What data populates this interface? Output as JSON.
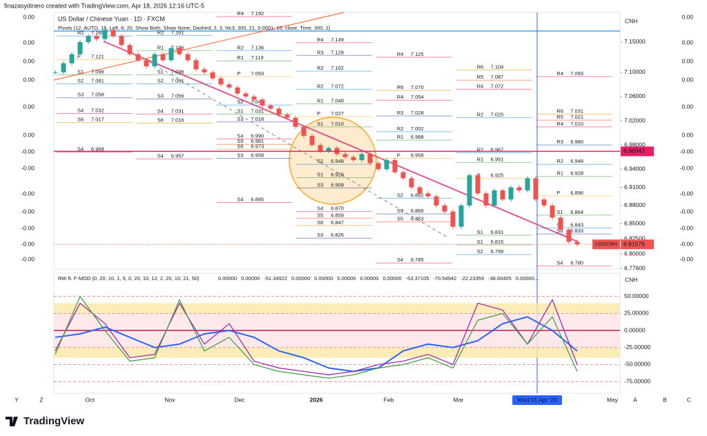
{
  "header": {
    "watermark": "finazasydinero created with TradingView.com, Apr 18, 2026 12:16 UTC-5",
    "symbol": "US Dollar / Chinese Yuan · 1D · FXCM",
    "pivots_legend": "Pivots (12, AUTO, 15, Left, 8, 20, Show Both, Show None, Dashed, 2, 3, hlc3, 300, 21, 0.0001, 10, close, Time, 300, 2)"
  },
  "chart_data": [
    {
      "type": "candlestick",
      "currency": "CNH",
      "up_color": "#26a69a",
      "down_color": "#ef5350",
      "closes": [
        7.1,
        7.115,
        7.13,
        7.15,
        7.16,
        7.155,
        7.17,
        7.16,
        7.145,
        7.13,
        7.12,
        7.11,
        7.13,
        7.12,
        7.14,
        7.13,
        7.12,
        7.105,
        7.1,
        7.09,
        7.08,
        7.075,
        7.065,
        7.06,
        7.055,
        7.045,
        7.04,
        7.03,
        7.025,
        7.01,
        6.995,
        6.98,
        6.97,
        6.975,
        6.965,
        6.96,
        6.955,
        6.965,
        6.95,
        6.94,
        6.955,
        6.935,
        6.925,
        6.91,
        6.9,
        6.895,
        6.88,
        6.87,
        6.845,
        6.88,
        6.93,
        6.9,
        6.88,
        6.905,
        6.89,
        6.91,
        6.905,
        6.925,
        6.89,
        6.88,
        6.86,
        6.84,
        6.82,
        6.816
      ],
      "ylim": [
        6.775,
        7.199
      ],
      "yticks": [
        {
          "value": 7.15,
          "label": "7.15000"
        },
        {
          "value": 7.1,
          "label": "7.10000"
        },
        {
          "value": 7.06,
          "label": "7.06000"
        },
        {
          "value": 7.02,
          "label": "7.02000"
        },
        {
          "value": 6.98,
          "label": "6.98000"
        },
        {
          "value": 6.94,
          "label": "6.94000"
        },
        {
          "value": 6.91,
          "label": "6.91000"
        },
        {
          "value": 6.88,
          "label": "6.88000"
        },
        {
          "value": 6.85,
          "label": "6.85000"
        },
        {
          "value": 6.825,
          "label": "6.82500"
        },
        {
          "value": 6.8,
          "label": "6.80000"
        },
        {
          "value": 6.776,
          "label": "6.77600"
        }
      ],
      "marker_price": {
        "value": 6.96942,
        "label": "6.96942"
      },
      "last_price_name": "USDCNH",
      "last_price": {
        "value": 6.81579,
        "label": "6.81579"
      },
      "x_labels": [
        "Oct",
        "Nov",
        "Dec",
        "2026",
        "Feb",
        "Mar",
        "Wed 01 Apr '26",
        "May"
      ],
      "left_labels": [
        "0.00",
        "0.00",
        "0.00",
        "0.00",
        "0.00",
        "0.00",
        "-0.00",
        "-0.00",
        "-0.00",
        "-0.00",
        "-0.00",
        "-0.00",
        "-0.00"
      ],
      "right_labels": [
        "0.00",
        "0.00",
        "0.00",
        "0.00",
        "0.00",
        "0.00",
        "-0.00",
        "-0.00",
        "-0.00",
        "-0.00",
        "-0.00",
        "-0.00",
        "-0.00"
      ],
      "pivot_colors": {
        "R1": "#43a047",
        "R2": "#1e88e5",
        "R3": "#3949ab",
        "R4": "#e91e63",
        "R5": "#f4511e",
        "R6": "#fb8c00",
        "P": "#f0b429",
        "S1": "#43a047",
        "S2": "#1e88e5",
        "S3": "#3949ab",
        "S4": "#e91e63",
        "S5": "#f4511e",
        "S6": "#fb8c00"
      },
      "pivot_periods": [
        {
          "levels": [
            {
              "name": "R2",
              "value": 7.16,
              "label": "7.160"
            },
            {
              "name": "P",
              "value": 7.121,
              "label": "7.121"
            },
            {
              "name": "S1",
              "value": 7.096,
              "label": "7.096"
            },
            {
              "name": "S2",
              "value": 7.081,
              "label": "7.081"
            },
            {
              "name": "S3",
              "value": 7.058,
              "label": "7.058"
            },
            {
              "name": "S4",
              "value": 7.032,
              "label": "7.032"
            },
            {
              "name": "S6",
              "value": 7.017,
              "label": "7.017"
            },
            {
              "name": "S4",
              "value": 6.968,
              "label": "6.968"
            }
          ]
        },
        {
          "levels": [
            {
              "name": "R2",
              "value": 7.161,
              "label": "7.161"
            },
            {
              "name": "R1",
              "value": 7.136,
              "label": "7.136"
            },
            {
              "name": "S1",
              "value": 7.096,
              "label": "7.096"
            },
            {
              "name": "S2",
              "value": 7.081,
              "label": "7.081"
            },
            {
              "name": "S3",
              "value": 7.056,
              "label": "7.056"
            },
            {
              "name": "S4",
              "value": 7.031,
              "label": "7.031"
            },
            {
              "name": "S6",
              "value": 7.016,
              "label": "7.016"
            },
            {
              "name": "S4",
              "value": 6.957,
              "label": "6.957"
            }
          ]
        },
        {
          "levels": [
            {
              "name": "R4",
              "value": 7.192,
              "label": "7.192"
            },
            {
              "name": "R2",
              "value": 7.136,
              "label": "7.136"
            },
            {
              "name": "R1",
              "value": 7.119,
              "label": "7.119"
            },
            {
              "name": "P",
              "value": 7.093,
              "label": "7.093"
            },
            {
              "name": "S2",
              "value": 7.046,
              "label": "7.046"
            },
            {
              "name": "S1",
              "value": 7.031,
              "label": "7.031"
            },
            {
              "name": "S3",
              "value": 7.018,
              "label": "7.018"
            },
            {
              "name": "S4",
              "value": 6.99,
              "label": "6.990"
            },
            {
              "name": "S5",
              "value": 6.981,
              "label": "6.981"
            },
            {
              "name": "S6",
              "value": 6.973,
              "label": "6.973"
            },
            {
              "name": "S3",
              "value": 6.958,
              "label": "6.958"
            },
            {
              "name": "S4",
              "value": 6.885,
              "label": "6.885"
            }
          ]
        },
        {
          "levels": [
            {
              "name": "R4",
              "value": 7.149,
              "label": "7.149"
            },
            {
              "name": "R3",
              "value": 7.128,
              "label": "7.128"
            },
            {
              "name": "R2",
              "value": 7.102,
              "label": "7.102"
            },
            {
              "name": "R2",
              "value": 7.072,
              "label": "7.072"
            },
            {
              "name": "R1",
              "value": 7.048,
              "label": "7.048"
            },
            {
              "name": "P",
              "value": 7.027,
              "label": "7.027"
            },
            {
              "name": "S1",
              "value": 7.01,
              "label": "7.010"
            },
            {
              "name": "S2",
              "value": 6.948,
              "label": "6.948"
            },
            {
              "name": "S1",
              "value": 6.926,
              "label": "6.926"
            },
            {
              "name": "S3",
              "value": 6.909,
              "label": "6.909"
            },
            {
              "name": "S4",
              "value": 6.87,
              "label": "6.870"
            },
            {
              "name": "S5",
              "value": 6.859,
              "label": "6.859"
            },
            {
              "name": "S6",
              "value": 6.847,
              "label": "6.847"
            },
            {
              "name": "S3",
              "value": 6.826,
              "label": "6.826"
            }
          ]
        },
        {
          "levels": [
            {
              "name": "R4",
              "value": 7.125,
              "label": "7.125"
            },
            {
              "name": "R6",
              "value": 7.07,
              "label": "7.070"
            },
            {
              "name": "R4",
              "value": 7.054,
              "label": "7.054"
            },
            {
              "name": "R3",
              "value": 7.028,
              "label": "7.028"
            },
            {
              "name": "R2",
              "value": 7.002,
              "label": "7.002"
            },
            {
              "name": "R1",
              "value": 6.988,
              "label": "6.988"
            },
            {
              "name": "P",
              "value": 6.958,
              "label": "6.958"
            },
            {
              "name": "S2",
              "value": 6.892,
              "label": "6.892"
            },
            {
              "name": "S3",
              "value": 6.866,
              "label": "6.866"
            },
            {
              "name": "S5",
              "value": 6.853,
              "label": "6.853"
            },
            {
              "name": "S4",
              "value": 6.785,
              "label": "6.785"
            }
          ]
        },
        {
          "levels": [
            {
              "name": "R6",
              "value": 7.104,
              "label": "7.104"
            },
            {
              "name": "R5",
              "value": 7.087,
              "label": "7.087"
            },
            {
              "name": "R4",
              "value": 7.072,
              "label": "7.072"
            },
            {
              "name": "R2",
              "value": 7.025,
              "label": "7.025"
            },
            {
              "name": "R2",
              "value": 6.967,
              "label": "6.967"
            },
            {
              "name": "R1",
              "value": 6.951,
              "label": "6.951"
            },
            {
              "name": "P",
              "value": 6.925,
              "label": "6.925"
            },
            {
              "name": "S1",
              "value": 6.831,
              "label": "6.831"
            },
            {
              "name": "S1",
              "value": 6.815,
              "label": "6.815"
            },
            {
              "name": "S2",
              "value": 6.799,
              "label": "6.799"
            }
          ]
        },
        {
          "levels": [
            {
              "name": "R4",
              "value": 7.093,
              "label": "7.093"
            },
            {
              "name": "R6",
              "value": 7.031,
              "label": "7.031"
            },
            {
              "name": "R5",
              "value": 7.021,
              "label": "7.021"
            },
            {
              "name": "R4",
              "value": 7.01,
              "label": "7.010"
            },
            {
              "name": "R3",
              "value": 6.98,
              "label": "6.980"
            },
            {
              "name": "R2",
              "value": 6.948,
              "label": "6.948"
            },
            {
              "name": "R1",
              "value": 6.928,
              "label": "6.928"
            },
            {
              "name": "P",
              "value": 6.896,
              "label": "6.896"
            },
            {
              "name": "S1",
              "value": 6.864,
              "label": "6.864"
            },
            {
              "name": "S2",
              "value": 6.843,
              "label": "6.843"
            },
            {
              "name": "S3",
              "value": 6.833,
              "label": "6.833"
            },
            {
              "name": "S4",
              "value": 6.78,
              "label": "6.780"
            }
          ]
        }
      ]
    },
    {
      "type": "line",
      "currency": "CNH",
      "legend_title": "RW ft. F-MOD (0, 20, 10, 1, 5, 0, 20, 10, 12, 2, 20, 10, 21, 50)",
      "legend_values": [
        {
          "label": "0.00000",
          "color": "#d4b106"
        },
        {
          "label": "0.00000",
          "color": "#22b14c"
        },
        {
          "label": "-51.34922",
          "color": "#8e44ad"
        },
        {
          "label": "0.00000",
          "color": "#c026d3"
        },
        {
          "label": "0.00000",
          "color": "#9b59b6"
        },
        {
          "label": "0.00000",
          "color": "#e84393"
        },
        {
          "label": "0.00000",
          "color": "#2962ff"
        },
        {
          "label": "0.00000",
          "color": "#1a237e"
        },
        {
          "label": "-53.37105",
          "color": "#43a047"
        },
        {
          "label": "-70.54942",
          "color": "#e53935"
        },
        {
          "label": "-22.23359",
          "color": "#1e88e5"
        },
        {
          "label": "-38.60405",
          "color": "#fb8c00"
        },
        {
          "label": "0.00000...",
          "color": "#c2185b"
        }
      ],
      "ylim": [
        -92,
        82
      ],
      "yticks": [
        {
          "value": 50,
          "label": "50.00000"
        },
        {
          "value": 25,
          "label": "25.00000"
        },
        {
          "value": 0,
          "label": "0.00000"
        },
        {
          "value": -25,
          "label": "-25.00000"
        },
        {
          "value": -50,
          "label": "-50.00000"
        },
        {
          "value": -75,
          "label": "-75.00000"
        }
      ],
      "series": [
        {
          "color": "#2962ff",
          "values": [
            -10,
            -5,
            5,
            -10,
            -25,
            -20,
            -5,
            0,
            -10,
            -30,
            -40,
            -55,
            -60,
            -55,
            -30,
            -20,
            -25,
            -15,
            10,
            20,
            0,
            -30
          ]
        },
        {
          "color": "#9c27b0",
          "values": [
            -30,
            40,
            10,
            -40,
            -35,
            40,
            -20,
            10,
            -45,
            -55,
            -60,
            -65,
            -60,
            -50,
            -45,
            -35,
            -50,
            40,
            30,
            -20,
            45,
            -50
          ]
        },
        {
          "color": "#43a047",
          "values": [
            -35,
            50,
            0,
            -45,
            -40,
            45,
            -30,
            -10,
            -50,
            -60,
            -65,
            -70,
            -65,
            -55,
            -50,
            -40,
            -55,
            15,
            25,
            -20,
            20,
            -60
          ]
        }
      ]
    }
  ],
  "toolbar": {
    "left": [
      "Y",
      "Z"
    ],
    "right": [
      "A",
      "B",
      "C"
    ]
  },
  "footer": {
    "brand": "TradingView"
  }
}
